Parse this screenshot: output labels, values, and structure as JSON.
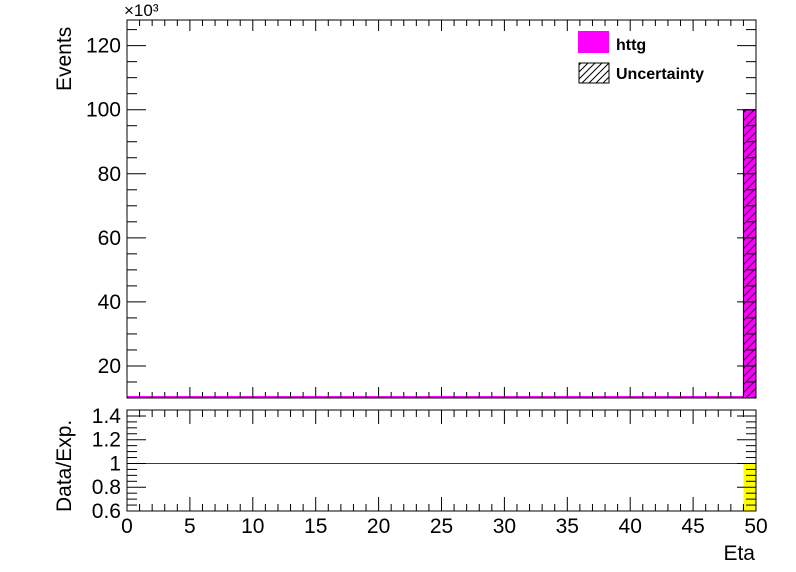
{
  "chart_data": [
    {
      "panel": "main",
      "type": "bar",
      "ylabel": "Events",
      "y_multiplier": "×10³",
      "ylim": [
        10,
        128
      ],
      "y_ticks": [
        20,
        40,
        60,
        80,
        100,
        120
      ],
      "y_tick_labels": [
        "20",
        "40",
        "60",
        "80",
        "100",
        "120"
      ],
      "xlim": [
        0,
        50
      ],
      "series": [
        {
          "name": "httg",
          "color": "#ff00ff",
          "bins": [
            {
              "x0": 49,
              "x1": 50,
              "value": 100
            }
          ]
        }
      ],
      "uncertainty": {
        "name": "Uncertainty",
        "pattern": "hatched"
      },
      "legend": {
        "position": "top-right",
        "entries": [
          "httg",
          "Uncertainty"
        ]
      }
    },
    {
      "panel": "ratio",
      "type": "bar",
      "ylabel": "Data/Exp.",
      "xlabel": "Eta",
      "ylim": [
        0.6,
        1.45
      ],
      "y_ticks": [
        0.6,
        0.8,
        1.0,
        1.2,
        1.4
      ],
      "y_tick_labels": [
        "0.6",
        "0.8",
        "1",
        "1.2",
        "1.4"
      ],
      "xlim": [
        0,
        50
      ],
      "x_ticks": [
        0,
        5,
        10,
        15,
        20,
        25,
        30,
        35,
        40,
        45,
        50
      ],
      "x_tick_labels": [
        "0",
        "5",
        "10",
        "15",
        "20",
        "25",
        "30",
        "35",
        "40",
        "45",
        "50"
      ],
      "reference_line": {
        "y": 1.0,
        "color": "#cc0000"
      },
      "uncertainty_band": {
        "color": "#ffff00",
        "bins": [
          {
            "x0": 49,
            "x1": 50,
            "low": 0.6,
            "high": 1.0
          }
        ]
      }
    }
  ]
}
